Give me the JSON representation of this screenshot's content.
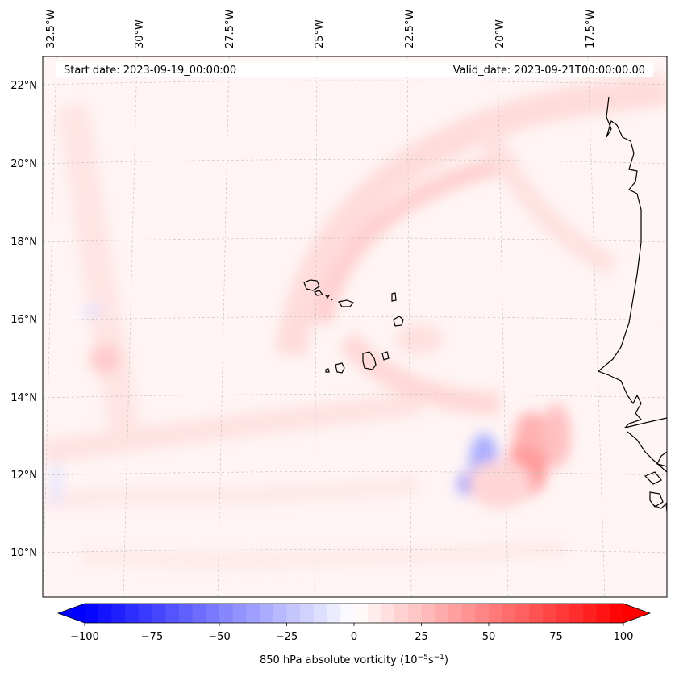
{
  "map": {
    "start_label": "Start date: 2023-09-19_00:00:00",
    "valid_label": "Valid_date: 2023-09-21T00:00:00.00",
    "lon_labels": [
      "32.5°W",
      "30°W",
      "27.5°W",
      "25°W",
      "22.5°W",
      "20°W",
      "17.5°W"
    ],
    "lat_labels": [
      "22°N",
      "20°N",
      "18°N",
      "16°N",
      "14°N",
      "12°N",
      "10°N"
    ],
    "gridlines": true,
    "coastline_color": "#000000"
  },
  "colorbar": {
    "label_prefix": "850 hPa absolute vorticity (10",
    "label_exp1": "−5",
    "label_mid": "s",
    "label_exp2": "−1",
    "label_suffix": ")",
    "ticks": [
      "−100",
      "−75",
      "−50",
      "−25",
      "0",
      "25",
      "50",
      "75",
      "100"
    ],
    "min": -100,
    "max": 100,
    "colormap": "bwr",
    "low_color": "#0000ff",
    "mid_color": "#ffffff",
    "high_color": "#ff0000"
  }
}
